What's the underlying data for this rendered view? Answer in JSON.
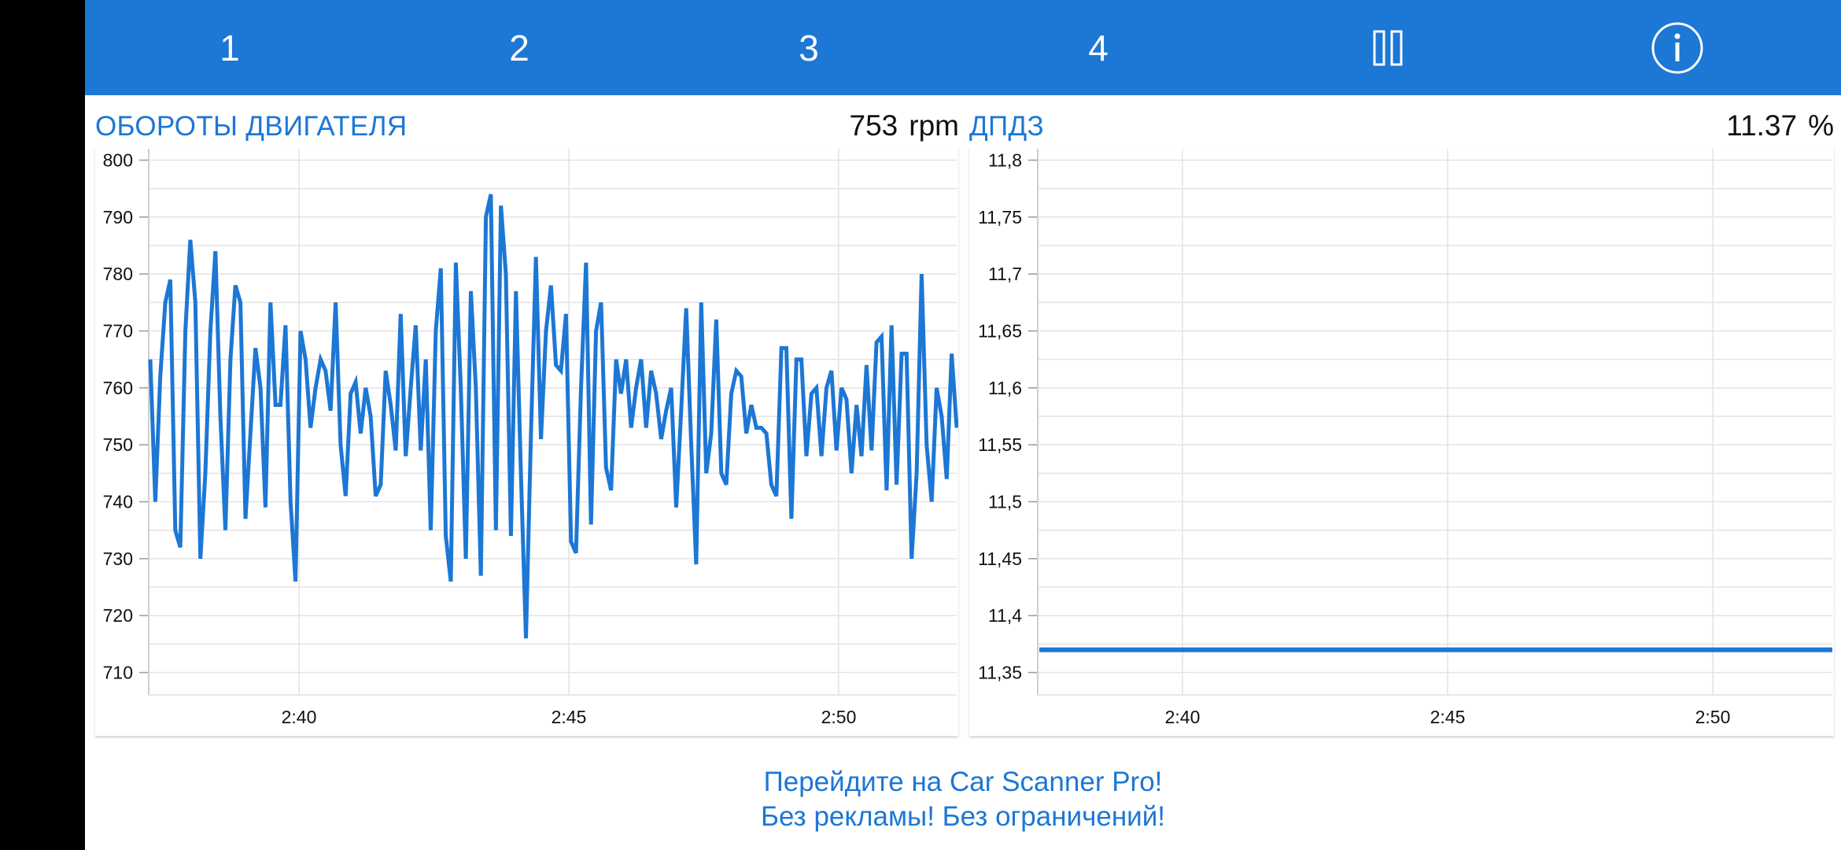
{
  "toolbar": {
    "tabs": [
      "1",
      "2",
      "3",
      "4"
    ],
    "pause_icon": "pause-icon",
    "info_icon": "info-icon",
    "bg_color": "#1c77d5"
  },
  "panels": [
    {
      "title": "ОБОРОТЫ ДВИГАТЕЛЯ",
      "value": "753",
      "unit": "rpm"
    },
    {
      "title": "ДПДЗ",
      "value": "11.37",
      "unit": "%"
    }
  ],
  "chart_data": [
    {
      "type": "line",
      "x_ticks": [
        "2:40",
        "2:45",
        "2:50"
      ],
      "y_ticks": [
        "800",
        "790",
        "780",
        "770",
        "760",
        "750",
        "740",
        "730",
        "720",
        "710"
      ],
      "ylim": [
        708,
        802
      ],
      "series": [
        {
          "values": [
            765,
            740,
            762,
            775,
            779,
            735,
            732,
            770,
            786,
            775,
            730,
            745,
            770,
            784,
            755,
            735,
            765,
            778,
            775,
            737,
            752,
            767,
            760,
            739,
            775,
            757,
            757,
            771,
            740,
            726,
            770,
            765,
            753,
            760,
            765,
            763,
            756,
            775,
            750,
            741,
            759,
            761,
            752,
            760,
            755,
            741,
            743,
            763,
            757,
            749,
            773,
            748,
            760,
            771,
            749,
            765,
            735,
            770,
            781,
            734,
            726,
            782,
            760,
            730,
            777,
            760,
            727,
            790,
            794,
            735,
            792,
            780,
            734,
            777,
            745,
            716,
            752,
            783,
            751,
            770,
            778,
            764,
            763,
            773,
            733,
            731,
            760,
            782,
            736,
            770,
            775,
            746,
            742,
            765,
            759,
            765,
            753,
            760,
            765,
            753,
            763,
            759,
            751,
            756,
            760,
            739,
            756,
            774,
            750,
            729,
            775,
            745,
            752,
            772,
            745,
            743,
            759,
            763,
            762,
            752,
            757,
            753,
            753,
            752,
            743,
            741,
            767,
            767,
            737,
            765,
            765,
            748,
            759,
            760,
            748,
            760,
            763,
            749,
            760,
            758,
            745,
            757,
            748,
            764,
            749,
            768,
            769,
            742,
            771,
            743,
            766,
            766,
            730,
            745,
            780,
            750,
            740,
            760,
            755,
            744,
            766,
            753
          ]
        }
      ]
    },
    {
      "type": "line",
      "x_ticks": [
        "2:40",
        "2:45",
        "2:50"
      ],
      "y_ticks": [
        "11,8",
        "11,75",
        "11,7",
        "11,65",
        "11,6",
        "11,55",
        "11,5",
        "11,45",
        "11,4",
        "11,35"
      ],
      "ylim": [
        11.34,
        11.81
      ],
      "series": [
        {
          "values": [
            11.37,
            11.37
          ]
        }
      ]
    }
  ],
  "promo": {
    "line1": "Перейдите на Car Scanner Pro!",
    "line2": "Без рекламы! Без ограничений!"
  }
}
